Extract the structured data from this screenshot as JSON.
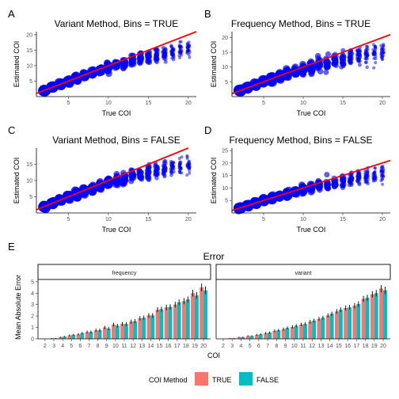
{
  "chart_data": [
    {
      "tag": "A",
      "type": "scatter",
      "title": "Variant Method, Bins = TRUE",
      "xlabel": "True COI",
      "ylabel": "Estimated COI",
      "xlim": [
        1,
        21
      ],
      "ylim": [
        0,
        21
      ],
      "xticks": [
        5,
        10,
        15,
        20
      ],
      "yticks": [
        5,
        10,
        15,
        20
      ],
      "reference_line": "y = x",
      "reference_color": "#ff0000",
      "point_color": "#0000ff",
      "x": [
        2,
        3,
        4,
        5,
        6,
        7,
        8,
        9,
        10,
        11,
        12,
        13,
        14,
        15,
        16,
        17,
        18,
        19,
        20
      ],
      "y_median": [
        2,
        3,
        4,
        5,
        5.9,
        6.8,
        7.7,
        8.5,
        9.3,
        10.1,
        10.8,
        11.5,
        12.2,
        12.8,
        13.4,
        13.9,
        14.5,
        15,
        15.5
      ],
      "y_spread": [
        0.3,
        0.4,
        0.5,
        0.6,
        0.8,
        1,
        1.1,
        1.3,
        1.5,
        1.7,
        1.9,
        2,
        2.2,
        2.4,
        2.5,
        2.6,
        2.8,
        2.9,
        3
      ]
    },
    {
      "tag": "B",
      "type": "scatter",
      "title": "Frequency Method, Bins = TRUE",
      "xlabel": "True COI",
      "ylabel": "Estimated COI",
      "xlim": [
        1,
        21
      ],
      "ylim": [
        0,
        22
      ],
      "xticks": [
        5,
        10,
        15,
        20
      ],
      "yticks": [
        5,
        10,
        15,
        20
      ],
      "reference_line": "y = x",
      "reference_color": "#ff0000",
      "point_color": "#0000ff",
      "x": [
        2,
        3,
        4,
        5,
        6,
        7,
        8,
        9,
        10,
        11,
        12,
        13,
        14,
        15,
        16,
        17,
        18,
        19,
        20
      ],
      "y_median": [
        2,
        3,
        4,
        5,
        5.9,
        6.8,
        7.6,
        8.4,
        9.2,
        10,
        10.8,
        11.4,
        12,
        12.6,
        13.2,
        13.8,
        14.4,
        14.8,
        15.2
      ],
      "y_spread": [
        0.3,
        0.4,
        0.6,
        0.8,
        1,
        1.2,
        1.4,
        1.6,
        1.8,
        2,
        2.2,
        2.4,
        2.6,
        2.8,
        3,
        3.1,
        3.3,
        3.4,
        3.6
      ]
    },
    {
      "tag": "C",
      "type": "scatter",
      "title": "Variant Method, Bins = FALSE",
      "xlabel": "True COI",
      "ylabel": "Estimated COI",
      "xlim": [
        1,
        21
      ],
      "ylim": [
        0,
        20
      ],
      "xticks": [
        5,
        10,
        15,
        20
      ],
      "yticks": [
        5,
        10,
        15
      ],
      "reference_line": "y = x",
      "reference_color": "#ff0000",
      "point_color": "#0000ff",
      "x": [
        2,
        3,
        4,
        5,
        6,
        7,
        8,
        9,
        10,
        11,
        12,
        13,
        14,
        15,
        16,
        17,
        18,
        19,
        20
      ],
      "y_median": [
        2,
        3,
        4,
        4.9,
        5.8,
        6.6,
        7.5,
        8.3,
        9.1,
        9.8,
        10.5,
        11.2,
        11.8,
        12.4,
        12.9,
        13.4,
        13.9,
        14.3,
        14.7
      ],
      "y_spread": [
        0.3,
        0.4,
        0.5,
        0.7,
        0.9,
        1,
        1.2,
        1.4,
        1.6,
        1.7,
        1.9,
        2,
        2.2,
        2.3,
        2.4,
        2.5,
        2.6,
        2.7,
        2.8
      ]
    },
    {
      "tag": "D",
      "type": "scatter",
      "title": "Frequency Method, Bins = FALSE",
      "xlabel": "True COI",
      "ylabel": "Estimated COI",
      "xlim": [
        1,
        21
      ],
      "ylim": [
        0,
        26
      ],
      "xticks": [
        5,
        10,
        15,
        20
      ],
      "yticks": [
        5,
        10,
        15,
        20,
        25
      ],
      "reference_line": "y = x",
      "reference_color": "#ff0000",
      "point_color": "#0000ff",
      "x": [
        2,
        3,
        4,
        5,
        6,
        7,
        8,
        9,
        10,
        11,
        12,
        13,
        14,
        15,
        16,
        17,
        18,
        19,
        20
      ],
      "y_median": [
        2,
        3,
        4,
        5,
        5.9,
        6.8,
        7.6,
        8.5,
        9.3,
        10,
        10.8,
        11.5,
        12.1,
        12.8,
        13.4,
        14,
        14.5,
        15,
        15.5
      ],
      "y_spread": [
        0.3,
        0.4,
        0.6,
        0.8,
        1,
        1.2,
        1.4,
        1.6,
        1.8,
        2,
        2.2,
        2.4,
        2.6,
        2.8,
        3,
        3.2,
        3.4,
        3.6,
        3.8
      ]
    },
    {
      "tag": "E",
      "type": "bar",
      "title": "Error",
      "xlabel": "COI",
      "ylabel": "Mean Absolute Error",
      "ylim": [
        0,
        5.2
      ],
      "yticks": [
        0,
        1,
        2,
        3,
        4,
        5
      ],
      "legend_title": "COI Method",
      "legend_position": "bottom",
      "series_meta": [
        {
          "name": "TRUE",
          "color": "#f8766d"
        },
        {
          "name": "FALSE",
          "color": "#00bfc4"
        }
      ],
      "facets": [
        {
          "label": "frequency",
          "categories": [
            "2",
            "3",
            "4",
            "5",
            "6",
            "7",
            "8",
            "9",
            "10",
            "11",
            "12",
            "13",
            "14",
            "15",
            "16",
            "17",
            "18",
            "19",
            "20"
          ],
          "series": [
            {
              "name": "TRUE",
              "values": [
                0,
                0.05,
                0.15,
                0.3,
                0.4,
                0.6,
                0.75,
                1.0,
                1.25,
                1.3,
                1.5,
                1.8,
                2.05,
                2.55,
                2.75,
                3.0,
                3.3,
                4.0,
                4.5
              ],
              "errors": [
                0,
                0.02,
                0.05,
                0.08,
                0.1,
                0.12,
                0.14,
                0.15,
                0.16,
                0.17,
                0.18,
                0.19,
                0.2,
                0.22,
                0.24,
                0.25,
                0.27,
                0.3,
                0.34
              ]
            },
            {
              "name": "FALSE",
              "values": [
                0,
                0.05,
                0.2,
                0.35,
                0.5,
                0.6,
                0.75,
                0.9,
                1.15,
                1.3,
                1.55,
                1.85,
                2.05,
                2.6,
                2.8,
                3.2,
                3.45,
                3.8,
                4.25
              ],
              "errors": [
                0,
                0.02,
                0.05,
                0.08,
                0.1,
                0.12,
                0.14,
                0.15,
                0.16,
                0.17,
                0.18,
                0.19,
                0.2,
                0.22,
                0.24,
                0.25,
                0.27,
                0.3,
                0.34
              ]
            }
          ]
        },
        {
          "label": "variant",
          "categories": [
            "2",
            "3",
            "4",
            "5",
            "6",
            "7",
            "8",
            "9",
            "10",
            "11",
            "12",
            "13",
            "14",
            "15",
            "16",
            "17",
            "18",
            "19",
            "20"
          ],
          "series": [
            {
              "name": "TRUE",
              "values": [
                0,
                0.05,
                0.15,
                0.25,
                0.35,
                0.5,
                0.7,
                0.85,
                1.05,
                1.25,
                1.5,
                1.75,
                2.05,
                2.4,
                2.7,
                2.9,
                3.5,
                3.9,
                4.4
              ],
              "errors": [
                0,
                0.02,
                0.04,
                0.06,
                0.08,
                0.1,
                0.12,
                0.13,
                0.14,
                0.15,
                0.16,
                0.17,
                0.18,
                0.2,
                0.22,
                0.24,
                0.26,
                0.28,
                0.32
              ]
            },
            {
              "name": "FALSE",
              "values": [
                0,
                0.05,
                0.15,
                0.25,
                0.4,
                0.55,
                0.75,
                0.95,
                1.15,
                1.3,
                1.6,
                1.85,
                2.2,
                2.55,
                2.75,
                3.05,
                3.6,
                4.0,
                4.25
              ],
              "errors": [
                0,
                0.02,
                0.04,
                0.06,
                0.08,
                0.1,
                0.12,
                0.13,
                0.14,
                0.15,
                0.16,
                0.17,
                0.18,
                0.2,
                0.22,
                0.24,
                0.26,
                0.28,
                0.32
              ]
            }
          ]
        }
      ]
    }
  ]
}
